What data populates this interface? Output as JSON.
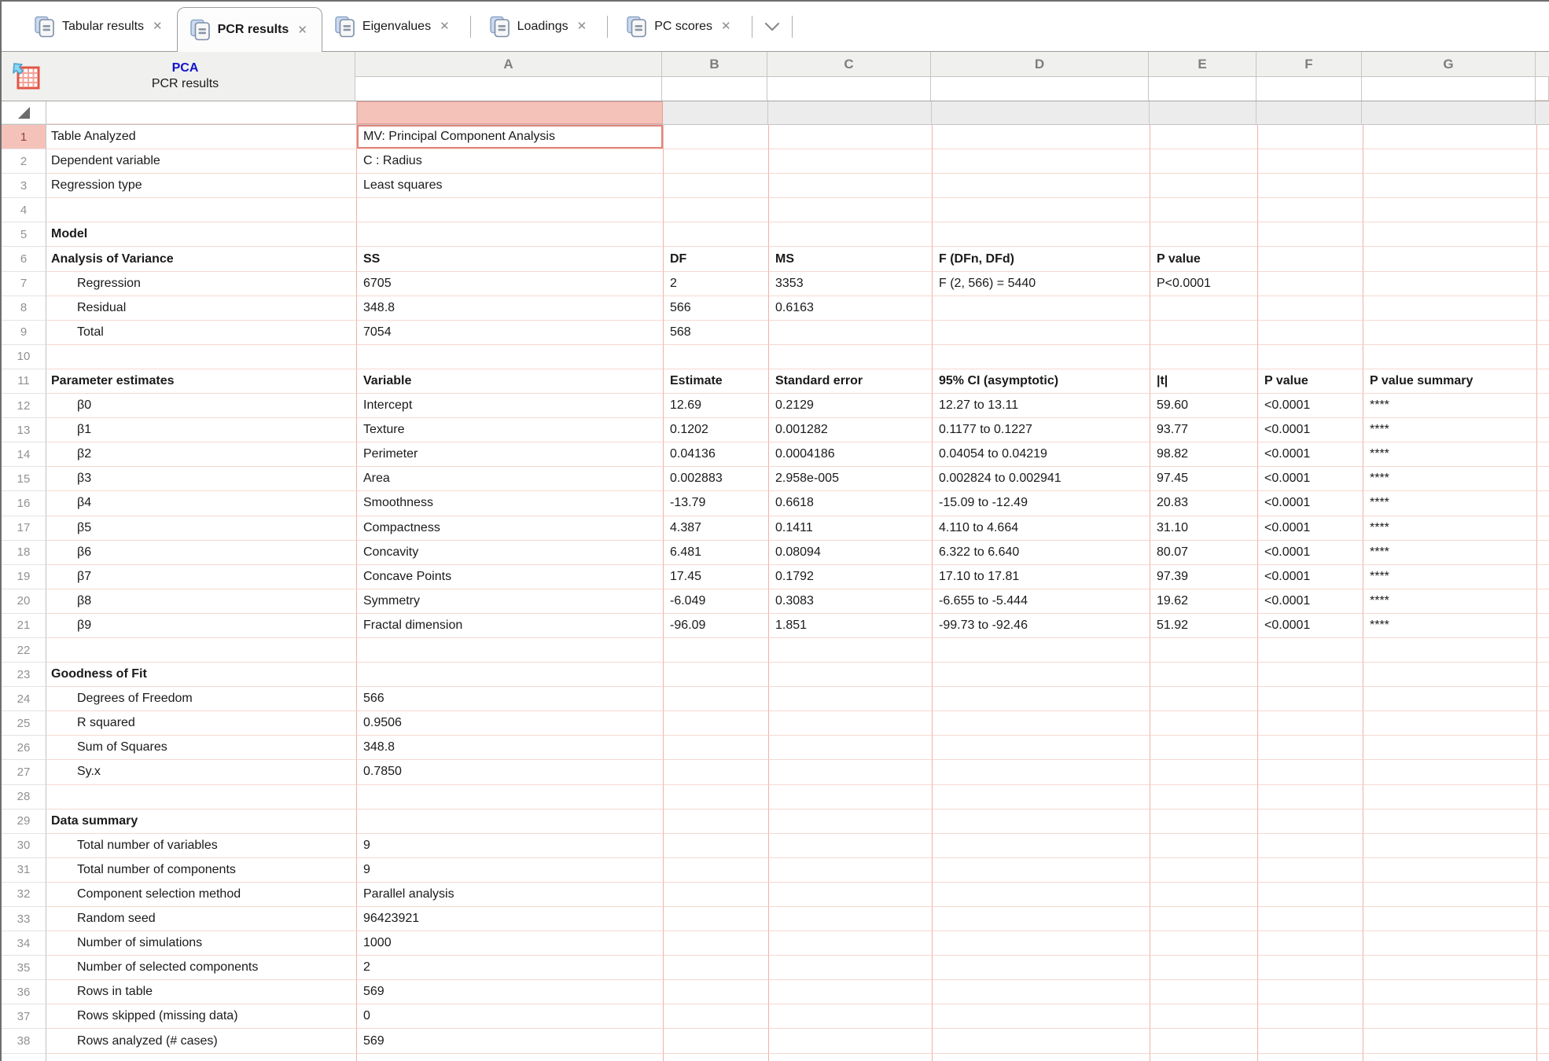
{
  "tab_bar": {
    "tabs": [
      {
        "label": "Tabular results",
        "active": false
      },
      {
        "label": "PCR results",
        "active": true
      },
      {
        "label": "Eigenvalues",
        "active": false
      },
      {
        "label": "Loadings",
        "active": false
      },
      {
        "label": "PC scores",
        "active": false
      }
    ],
    "close_glyph": "✕",
    "overflow_icon": "chevron-down"
  },
  "sheet_header": {
    "analysis_title": "PCA",
    "sheet_title": "PCR results",
    "columns": [
      "A",
      "B",
      "C",
      "D",
      "E",
      "F",
      "G"
    ]
  },
  "colors": {
    "selection_border": "#e2857b",
    "selection_fill": "#f5c2ba",
    "grid_line_horizontal": "#f6d8d0",
    "grid_line_vertical": "#f0b2a8",
    "header_background": "#f0f0ee",
    "analysis_title_blue": "#1212cc"
  },
  "grid": {
    "rows": [
      {
        "n": "1",
        "label": "Table Analyzed",
        "indent": 0,
        "bold": false,
        "selected": true,
        "cells": {
          "A": "MV: Principal Component Analysis"
        }
      },
      {
        "n": "2",
        "label": "Dependent variable",
        "indent": 0,
        "cells": {
          "A": "C : Radius"
        }
      },
      {
        "n": "3",
        "label": "Regression type",
        "indent": 0,
        "cells": {
          "A": "Least squares"
        }
      },
      {
        "n": "4"
      },
      {
        "n": "5",
        "label": "Model",
        "indent": 0,
        "bold": true
      },
      {
        "n": "6",
        "label": "Analysis of Variance",
        "indent": 0,
        "bold": true,
        "cells_bold": true,
        "cells": {
          "A": "SS",
          "B": "DF",
          "C": "MS",
          "D": "F (DFn, DFd)",
          "E": "P value"
        }
      },
      {
        "n": "7",
        "label": "Regression",
        "indent": 1,
        "cells": {
          "A": "6705",
          "B": "2",
          "C": "3353",
          "D": "F (2, 566) = 5440",
          "E": "P<0.0001"
        }
      },
      {
        "n": "8",
        "label": "Residual",
        "indent": 1,
        "cells": {
          "A": "348.8",
          "B": "566",
          "C": "0.6163"
        }
      },
      {
        "n": "9",
        "label": "Total",
        "indent": 1,
        "cells": {
          "A": "7054",
          "B": "568"
        }
      },
      {
        "n": "10"
      },
      {
        "n": "11",
        "label": "Parameter estimates",
        "indent": 0,
        "bold": true,
        "cells_bold": true,
        "cells": {
          "A": "Variable",
          "B": "Estimate",
          "C": "Standard error",
          "D": "95% CI (asymptotic)",
          "E": "|t|",
          "F": "P value",
          "G": "P value summary"
        }
      },
      {
        "n": "12",
        "label": "β0",
        "indent": 1,
        "cells": {
          "A": "Intercept",
          "B": "12.69",
          "C": "0.2129",
          "D": "12.27 to 13.11",
          "E": "59.60",
          "F": "<0.0001",
          "G": "****"
        }
      },
      {
        "n": "13",
        "label": "β1",
        "indent": 1,
        "cells": {
          "A": "Texture",
          "B": "0.1202",
          "C": "0.001282",
          "D": "0.1177 to 0.1227",
          "E": "93.77",
          "F": "<0.0001",
          "G": "****"
        }
      },
      {
        "n": "14",
        "label": "β2",
        "indent": 1,
        "cells": {
          "A": "Perimeter",
          "B": "0.04136",
          "C": "0.0004186",
          "D": "0.04054 to 0.04219",
          "E": "98.82",
          "F": "<0.0001",
          "G": "****"
        }
      },
      {
        "n": "15",
        "label": "β3",
        "indent": 1,
        "cells": {
          "A": "Area",
          "B": "0.002883",
          "C": "2.958e-005",
          "D": "0.002824 to 0.002941",
          "E": "97.45",
          "F": "<0.0001",
          "G": "****"
        }
      },
      {
        "n": "16",
        "label": "β4",
        "indent": 1,
        "cells": {
          "A": "Smoothness",
          "B": "-13.79",
          "C": "0.6618",
          "D": "-15.09 to -12.49",
          "E": "20.83",
          "F": "<0.0001",
          "G": "****"
        }
      },
      {
        "n": "17",
        "label": "β5",
        "indent": 1,
        "cells": {
          "A": "Compactness",
          "B": "4.387",
          "C": "0.1411",
          "D": "4.110 to 4.664",
          "E": "31.10",
          "F": "<0.0001",
          "G": "****"
        }
      },
      {
        "n": "18",
        "label": "β6",
        "indent": 1,
        "cells": {
          "A": "Concavity",
          "B": "6.481",
          "C": "0.08094",
          "D": "6.322 to 6.640",
          "E": "80.07",
          "F": "<0.0001",
          "G": "****"
        }
      },
      {
        "n": "19",
        "label": "β7",
        "indent": 1,
        "cells": {
          "A": "Concave Points",
          "B": "17.45",
          "C": "0.1792",
          "D": "17.10 to 17.81",
          "E": "97.39",
          "F": "<0.0001",
          "G": "****"
        }
      },
      {
        "n": "20",
        "label": "β8",
        "indent": 1,
        "cells": {
          "A": "Symmetry",
          "B": "-6.049",
          "C": "0.3083",
          "D": "-6.655 to -5.444",
          "E": "19.62",
          "F": "<0.0001",
          "G": "****"
        }
      },
      {
        "n": "21",
        "label": "β9",
        "indent": 1,
        "cells": {
          "A": "Fractal dimension",
          "B": "-96.09",
          "C": "1.851",
          "D": "-99.73 to -92.46",
          "E": "51.92",
          "F": "<0.0001",
          "G": "****"
        }
      },
      {
        "n": "22"
      },
      {
        "n": "23",
        "label": "Goodness of Fit",
        "indent": 0,
        "bold": true
      },
      {
        "n": "24",
        "label": "Degrees of Freedom",
        "indent": 1,
        "cells": {
          "A": "566"
        }
      },
      {
        "n": "25",
        "label": "R squared",
        "indent": 1,
        "cells": {
          "A": "0.9506"
        }
      },
      {
        "n": "26",
        "label": "Sum of Squares",
        "indent": 1,
        "cells": {
          "A": "348.8"
        }
      },
      {
        "n": "27",
        "label": "Sy.x",
        "indent": 1,
        "cells": {
          "A": "0.7850"
        }
      },
      {
        "n": "28"
      },
      {
        "n": "29",
        "label": "Data summary",
        "indent": 0,
        "bold": true
      },
      {
        "n": "30",
        "label": "Total number of variables",
        "indent": 1,
        "cells": {
          "A": "9"
        }
      },
      {
        "n": "31",
        "label": "Total number of components",
        "indent": 1,
        "cells": {
          "A": "9"
        }
      },
      {
        "n": "32",
        "label": "Component selection method",
        "indent": 1,
        "cells": {
          "A": "Parallel analysis"
        }
      },
      {
        "n": "33",
        "label": "Random seed",
        "indent": 1,
        "cells": {
          "A": "96423921"
        }
      },
      {
        "n": "34",
        "label": "Number of simulations",
        "indent": 1,
        "cells": {
          "A": "1000"
        }
      },
      {
        "n": "35",
        "label": "Number of selected components",
        "indent": 1,
        "cells": {
          "A": "2"
        }
      },
      {
        "n": "36",
        "label": "Rows in table",
        "indent": 1,
        "cells": {
          "A": "569"
        }
      },
      {
        "n": "37",
        "label": "Rows skipped (missing data)",
        "indent": 1,
        "cells": {
          "A": "0"
        }
      },
      {
        "n": "38",
        "label": "Rows analyzed (# cases)",
        "indent": 1,
        "cells": {
          "A": "569"
        }
      },
      {
        "n": "39"
      }
    ]
  }
}
